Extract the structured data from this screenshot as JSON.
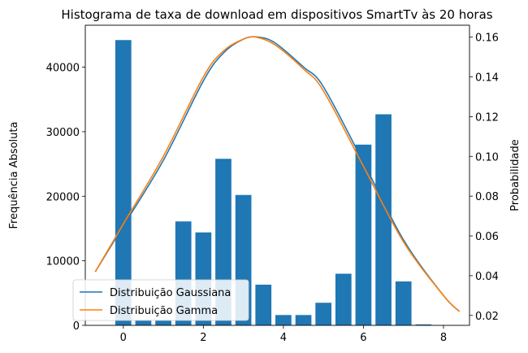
{
  "chart_data": {
    "type": "bar",
    "title": "Histograma de taxa de download em dispositivos SmartTv às 20 horas",
    "xlabel": "",
    "ylabel": "Frequência Absoluta",
    "y2label": "Probabilidade",
    "xlim": [
      -0.95,
      8.65
    ],
    "ylim": [
      0,
      46500
    ],
    "y2lim": [
      0.015,
      0.166
    ],
    "x_ticks": [
      0,
      2,
      4,
      6,
      8
    ],
    "y_ticks": [
      0,
      10000,
      20000,
      30000,
      40000
    ],
    "y2_ticks": [
      0.02,
      0.04,
      0.06,
      0.08,
      0.1,
      0.12,
      0.14,
      0.16
    ],
    "bar_color": "#1f77b4",
    "bar_width": 0.4,
    "bars": [
      {
        "x": 0.0,
        "value": 44200
      },
      {
        "x": 0.5,
        "value": 800
      },
      {
        "x": 1.0,
        "value": 800
      },
      {
        "x": 1.5,
        "value": 16100
      },
      {
        "x": 2.0,
        "value": 14400
      },
      {
        "x": 2.5,
        "value": 25800
      },
      {
        "x": 3.0,
        "value": 20200
      },
      {
        "x": 3.5,
        "value": 6300
      },
      {
        "x": 4.0,
        "value": 1600
      },
      {
        "x": 4.5,
        "value": 1600
      },
      {
        "x": 5.0,
        "value": 3500
      },
      {
        "x": 5.5,
        "value": 8000
      },
      {
        "x": 6.0,
        "value": 28000
      },
      {
        "x": 6.5,
        "value": 32700
      },
      {
        "x": 7.0,
        "value": 6800
      },
      {
        "x": 7.5,
        "value": 150
      }
    ],
    "series": [
      {
        "name": "Distribuição Gaussiana",
        "color": "#1f77b4",
        "x": [
          -0.7,
          0.0,
          1.0,
          2.0,
          2.5,
          3.0,
          3.38,
          3.8,
          4.5,
          5.0,
          6.0,
          7.0,
          8.0,
          8.4
        ],
        "y": [
          0.042,
          0.065,
          0.098,
          0.138,
          0.152,
          0.159,
          0.16,
          0.157,
          0.145,
          0.135,
          0.097,
          0.058,
          0.03,
          0.022
        ]
      },
      {
        "name": "Distribuição Gamma",
        "color": "#ff7f0e",
        "x": [
          -0.7,
          0.0,
          1.0,
          2.0,
          2.5,
          3.0,
          3.32,
          3.8,
          4.5,
          5.0,
          6.0,
          7.0,
          8.0,
          8.4
        ],
        "y": [
          0.042,
          0.066,
          0.1,
          0.14,
          0.153,
          0.159,
          0.16,
          0.156,
          0.144,
          0.133,
          0.095,
          0.057,
          0.03,
          0.022
        ]
      }
    ],
    "legend": "lower-left",
    "grid": false
  }
}
